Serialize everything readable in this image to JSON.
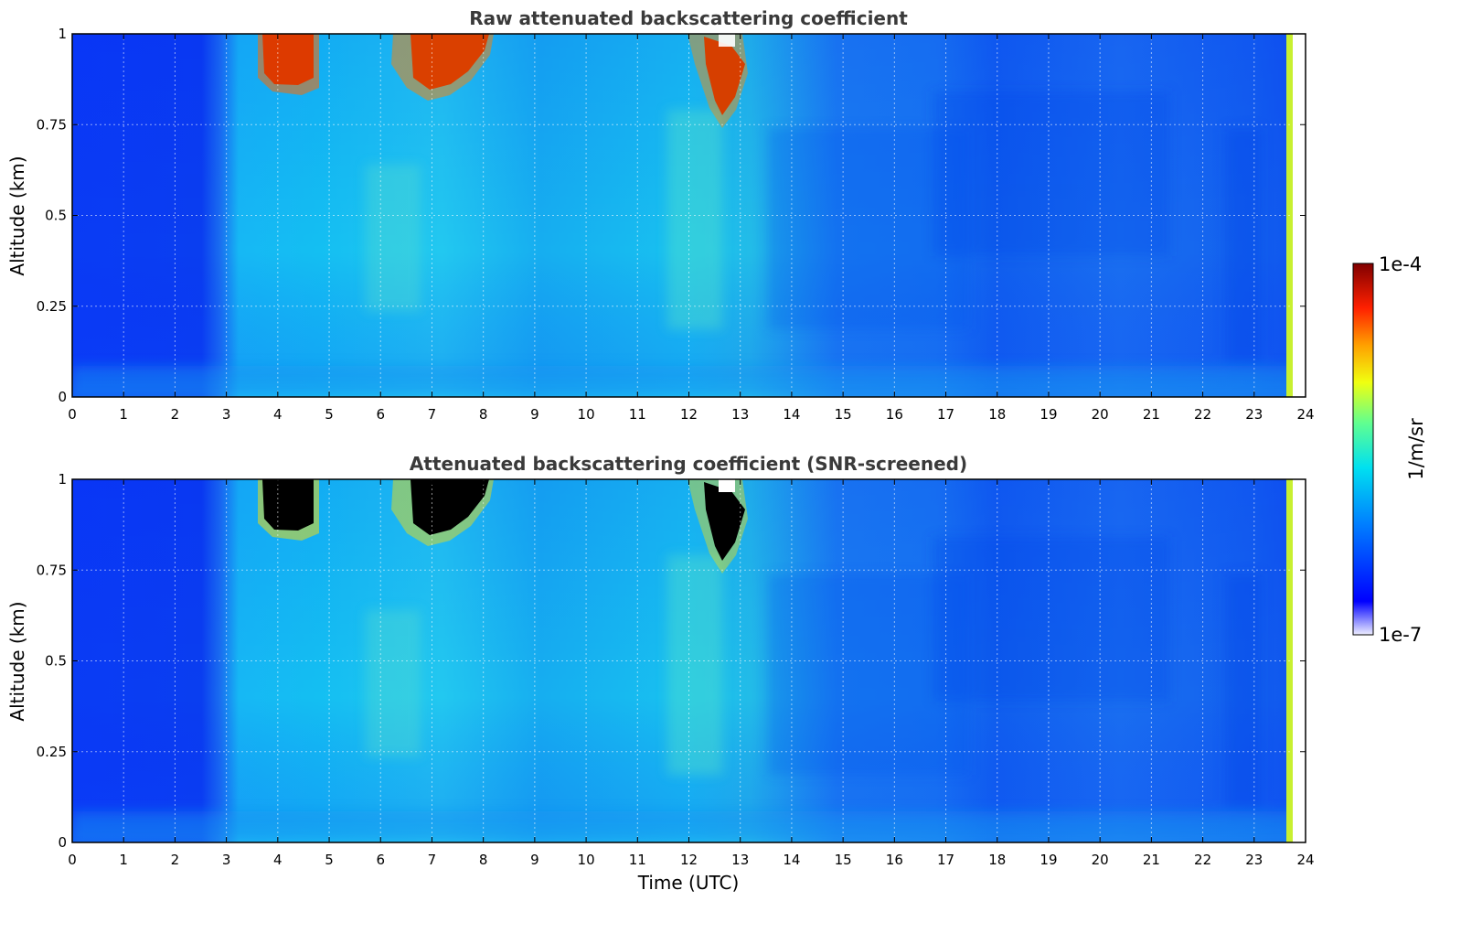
{
  "chart_data": [
    {
      "type": "heatmap",
      "title": "Raw attenuated backscattering coefficient",
      "xlabel": "",
      "ylabel": "Altitude (km)",
      "xlim": [
        0,
        24
      ],
      "ylim": [
        0,
        1
      ],
      "x_ticks": [
        "0",
        "1",
        "2",
        "3",
        "4",
        "5",
        "6",
        "7",
        "8",
        "9",
        "10",
        "11",
        "12",
        "13",
        "14",
        "15",
        "16",
        "17",
        "18",
        "19",
        "20",
        "21",
        "22",
        "23",
        "24"
      ],
      "y_ticks": [
        "0",
        "0.25",
        "0.5",
        "0.75",
        "1"
      ],
      "grid": true,
      "scale": "log",
      "value_range": [
        "1e-7",
        "1e-4"
      ],
      "features": [
        {
          "t_start": 3.7,
          "t_end": 4.7,
          "alt_min": 0.87,
          "level": "high"
        },
        {
          "t_start": 6.6,
          "t_end": 8.1,
          "alt_min": 0.85,
          "level": "high"
        },
        {
          "t_start": 12.4,
          "t_end": 13.1,
          "alt_min": 0.77,
          "level": "high"
        }
      ]
    },
    {
      "type": "heatmap",
      "title": "Attenuated backscattering coefficient (SNR-screened)",
      "xlabel": "Time (UTC)",
      "ylabel": "Altitude (km)",
      "xlim": [
        0,
        24
      ],
      "ylim": [
        0,
        1
      ],
      "x_ticks": [
        "0",
        "1",
        "2",
        "3",
        "4",
        "5",
        "6",
        "7",
        "8",
        "9",
        "10",
        "11",
        "12",
        "13",
        "14",
        "15",
        "16",
        "17",
        "18",
        "19",
        "20",
        "21",
        "22",
        "23",
        "24"
      ],
      "y_ticks": [
        "0",
        "0.25",
        "0.5",
        "0.75",
        "1"
      ],
      "grid": true,
      "scale": "log",
      "value_range": [
        "1e-7",
        "1e-4"
      ],
      "features": [
        {
          "t_start": 3.7,
          "t_end": 4.7,
          "alt_min": 0.87,
          "level": "screened"
        },
        {
          "t_start": 6.6,
          "t_end": 8.1,
          "alt_min": 0.85,
          "level": "screened"
        },
        {
          "t_start": 12.4,
          "t_end": 13.1,
          "alt_min": 0.77,
          "level": "screened"
        }
      ]
    }
  ],
  "colorbar": {
    "label": "1/m/sr",
    "max_label": "1e-4",
    "min_label": "1e-7",
    "colormap": "jet",
    "screened_color": "#000000"
  }
}
